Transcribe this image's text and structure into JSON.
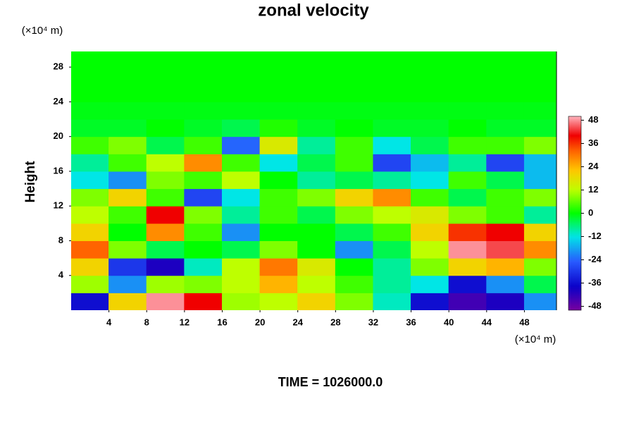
{
  "chart_data": {
    "type": "heatmap",
    "title": "zonal velocity",
    "ylabel": "Height",
    "x_unit": "(×10⁴ m)",
    "y_unit": "(×10⁴ m)",
    "footer": "TIME = 1026000.0",
    "x": [
      2,
      6,
      10,
      14,
      18,
      22,
      26,
      30,
      34,
      38,
      42,
      46,
      50
    ],
    "y": [
      1,
      3,
      5,
      7,
      9,
      11,
      13,
      15,
      17,
      19,
      21,
      23,
      25,
      27,
      29
    ],
    "z": [
      [
        -36,
        20,
        48,
        40,
        10,
        12,
        20,
        8,
        -10,
        -36,
        -44,
        -40,
        -20
      ],
      [
        10,
        -20,
        10,
        8,
        12,
        24,
        12,
        4,
        -8,
        -12,
        -36,
        -20,
        -4
      ],
      [
        20,
        -30,
        -40,
        -10,
        12,
        30,
        16,
        0,
        -8,
        8,
        20,
        24,
        8
      ],
      [
        32,
        8,
        -4,
        0,
        -4,
        8,
        0,
        -20,
        -4,
        12,
        48,
        44,
        28
      ],
      [
        20,
        0,
        28,
        4,
        -20,
        0,
        0,
        -4,
        4,
        20,
        36,
        40,
        20
      ],
      [
        12,
        4,
        40,
        8,
        -8,
        4,
        -4,
        8,
        12,
        16,
        8,
        4,
        -8
      ],
      [
        8,
        20,
        4,
        -28,
        -12,
        4,
        8,
        20,
        28,
        4,
        -4,
        4,
        8
      ],
      [
        -12,
        -20,
        8,
        4,
        12,
        0,
        -8,
        -4,
        -8,
        -12,
        4,
        -4,
        -16
      ],
      [
        -8,
        4,
        12,
        28,
        4,
        -12,
        -4,
        4,
        -28,
        -16,
        -8,
        -28,
        -16
      ],
      [
        4,
        8,
        -4,
        4,
        -24,
        16,
        -8,
        4,
        -12,
        -4,
        4,
        4,
        8
      ],
      [
        -2,
        -2,
        0,
        -2,
        -4,
        2,
        -2,
        0,
        -2,
        -2,
        0,
        -2,
        -2
      ],
      [
        -1,
        -1,
        -1,
        -1,
        -1,
        -1,
        -1,
        -1,
        -1,
        -1,
        -1,
        -1,
        -1
      ],
      [
        0,
        0,
        0,
        0,
        0,
        0,
        0,
        0,
        0,
        0,
        0,
        0,
        0
      ],
      [
        0,
        0,
        0,
        0,
        0,
        0,
        0,
        0,
        0,
        0,
        0,
        0,
        0
      ],
      [
        0,
        0,
        0,
        0,
        0,
        0,
        0,
        0,
        0,
        0,
        0,
        0,
        0
      ]
    ],
    "xlim": [
      0,
      51.4
    ],
    "ylim": [
      0,
      29.8
    ],
    "xticks": [
      4,
      8,
      12,
      16,
      20,
      24,
      28,
      32,
      36,
      40,
      44,
      48
    ],
    "yticks": [
      4,
      8,
      12,
      16,
      20,
      24,
      28
    ],
    "clim": [
      -50,
      50
    ],
    "cticks": [
      -48,
      -36,
      -24,
      -12,
      0,
      12,
      24,
      36,
      48
    ]
  }
}
